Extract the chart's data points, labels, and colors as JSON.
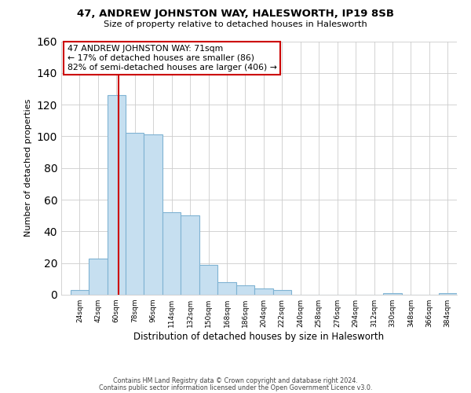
{
  "title": "47, ANDREW JOHNSTON WAY, HALESWORTH, IP19 8SB",
  "subtitle": "Size of property relative to detached houses in Halesworth",
  "xlabel": "Distribution of detached houses by size in Halesworth",
  "ylabel": "Number of detached properties",
  "bar_color": "#c6dff0",
  "bar_edge_color": "#7fb3d3",
  "bin_labels": [
    "24sqm",
    "42sqm",
    "60sqm",
    "78sqm",
    "96sqm",
    "114sqm",
    "132sqm",
    "150sqm",
    "168sqm",
    "186sqm",
    "204sqm",
    "222sqm",
    "240sqm",
    "258sqm",
    "276sqm",
    "294sqm",
    "312sqm",
    "330sqm",
    "348sqm",
    "366sqm",
    "384sqm"
  ],
  "bar_heights": [
    3,
    23,
    126,
    102,
    101,
    52,
    50,
    19,
    8,
    6,
    4,
    3,
    0,
    0,
    0,
    0,
    0,
    1,
    0,
    0,
    1
  ],
  "bin_starts": [
    24,
    42,
    60,
    78,
    96,
    114,
    132,
    150,
    168,
    186,
    204,
    222,
    240,
    258,
    276,
    294,
    312,
    330,
    348,
    366,
    384
  ],
  "bin_width": 18,
  "vline_x": 71,
  "vline_color": "#cc0000",
  "ylim": [
    0,
    160
  ],
  "yticks": [
    0,
    20,
    40,
    60,
    80,
    100,
    120,
    140,
    160
  ],
  "xlim_min": 15,
  "xlim_max": 402,
  "annotation_text": "47 ANDREW JOHNSTON WAY: 71sqm\n← 17% of detached houses are smaller (86)\n82% of semi-detached houses are larger (406) →",
  "annotation_box_edge": "#cc0000",
  "footer1": "Contains HM Land Registry data © Crown copyright and database right 2024.",
  "footer2": "Contains public sector information licensed under the Open Government Licence v3.0.",
  "background_color": "#ffffff",
  "grid_color": "#cccccc"
}
